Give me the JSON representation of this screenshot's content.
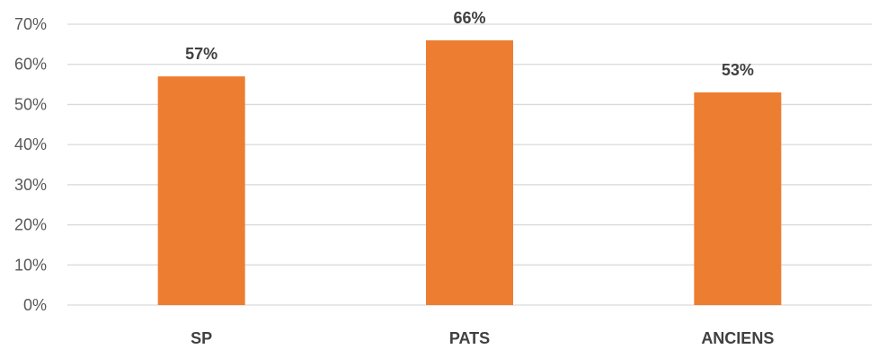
{
  "chart_data": {
    "type": "bar",
    "categories": [
      "SP",
      "PATS",
      "ANCIENS"
    ],
    "values": [
      0.57,
      0.66,
      0.53
    ],
    "data_labels": [
      "57%",
      "66%",
      "53%"
    ],
    "ylim": [
      0,
      0.7
    ],
    "yticks": [
      0,
      0.1,
      0.2,
      0.3,
      0.4,
      0.5,
      0.6,
      0.7
    ],
    "ytick_labels": [
      "0%",
      "10%",
      "20%",
      "30%",
      "40%",
      "50%",
      "60%",
      "70%"
    ],
    "title": "",
    "xlabel": "",
    "ylabel": "",
    "grid": true,
    "legend": "none",
    "bar_color": "#ED7D31"
  }
}
